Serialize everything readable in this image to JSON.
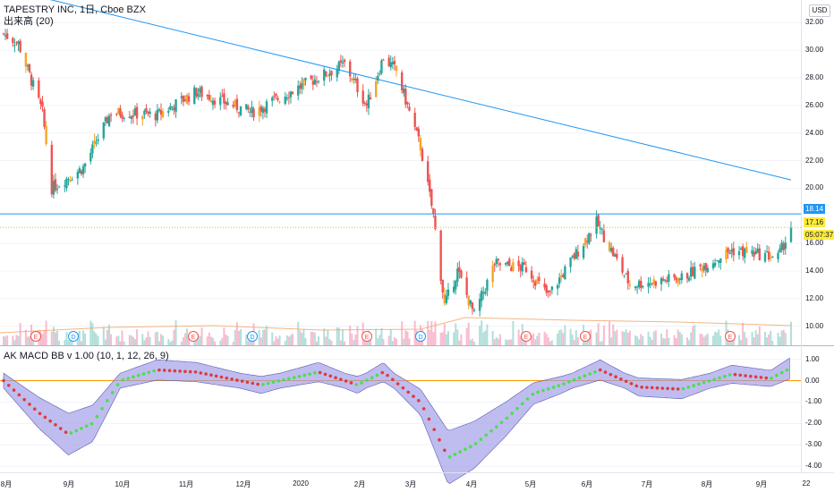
{
  "header": {
    "symbol_title": "TAPESTRY INC, 1日, Cboe BZX",
    "volume_legend": "出来高 (20)",
    "indicator_legend": "AK MACD BB v 1.00 (10, 1, 12, 26, 9)",
    "currency": "USD"
  },
  "price_axis": {
    "labels": [
      "32.00",
      "30.00",
      "28.00",
      "26.00",
      "24.00",
      "22.00",
      "20.00",
      "16.00",
      "14.00",
      "12.00",
      "10.00"
    ],
    "horizontal_line_tag": "18.14",
    "last_price_tag": "17.16",
    "countdown_tag": "05:07:37"
  },
  "indicator_axis": {
    "labels": [
      "1.00",
      "0.00",
      "-1.00",
      "-2.00",
      "-3.00",
      "-4.00"
    ]
  },
  "time_axis": {
    "labels": [
      "8月",
      "9月",
      "10月",
      "11月",
      "12月",
      "2020",
      "2月",
      "3月",
      "4月",
      "5月",
      "6月",
      "7月",
      "8月",
      "9月",
      "22"
    ]
  },
  "event_markers": [
    "E",
    "D",
    "E",
    "D",
    "E",
    "D",
    "E",
    "E",
    "E"
  ],
  "colors": {
    "up_candle": "#26a69a",
    "down_candle": "#ef5350",
    "highlight_candle": "#f4a62a",
    "trend_line": "#2196f3",
    "zero_line": "#ff9800",
    "macd_up_dots": "#4be04b",
    "macd_down_dots": "#e03a3a",
    "bb_fill": "#9c99e6",
    "tag_blue": "#2196f3",
    "tag_yellow": "#ffeb3b"
  },
  "chart_data": [
    {
      "type": "candlestick",
      "x_start": "2019-07-24",
      "x_end": "2020-09-21",
      "ylim": [
        9.0,
        33.0
      ],
      "checkpoints": [
        {
          "x": "2019-07-24",
          "close": 31.2
        },
        {
          "x": "2019-08-01",
          "close": 30.5
        },
        {
          "x": "2019-08-14",
          "close": 25.5
        },
        {
          "x": "2019-08-19",
          "close": 20.0
        },
        {
          "x": "2019-09-05",
          "close": 21.5
        },
        {
          "x": "2019-09-20",
          "close": 25.5
        },
        {
          "x": "2019-10-15",
          "close": 25.3
        },
        {
          "x": "2019-11-05",
          "close": 27.0
        },
        {
          "x": "2019-12-05",
          "close": 25.5
        },
        {
          "x": "2020-01-02",
          "close": 27.5
        },
        {
          "x": "2020-01-24",
          "close": 29.0
        },
        {
          "x": "2020-02-05",
          "close": 26.0
        },
        {
          "x": "2020-02-14",
          "close": 29.5
        },
        {
          "x": "2020-02-21",
          "close": 28.5
        },
        {
          "x": "2020-03-05",
          "close": 23.0
        },
        {
          "x": "2020-03-12",
          "close": 18.0
        },
        {
          "x": "2020-03-18",
          "close": 11.5
        },
        {
          "x": "2020-03-25",
          "close": 14.0
        },
        {
          "x": "2020-04-03",
          "close": 10.8
        },
        {
          "x": "2020-04-14",
          "close": 14.5
        },
        {
          "x": "2020-05-01",
          "close": 14.2
        },
        {
          "x": "2020-05-13",
          "close": 12.2
        },
        {
          "x": "2020-06-08",
          "close": 17.5
        },
        {
          "x": "2020-06-26",
          "close": 13.0
        },
        {
          "x": "2020-07-24",
          "close": 13.5
        },
        {
          "x": "2020-08-20",
          "close": 15.5
        },
        {
          "x": "2020-09-14",
          "close": 15.0
        },
        {
          "x": "2020-09-21",
          "close": 17.16
        }
      ],
      "horizontal_line": 18.14,
      "trend_line": [
        {
          "x": "2019-07-24",
          "y": 34.5
        },
        {
          "x": "2020-09-21",
          "y": 20.6
        }
      ]
    },
    {
      "type": "bar",
      "series_name": "出来高 (20)",
      "note": "volume histogram with 20-period moving average overlay"
    },
    {
      "type": "area",
      "series_name": "AK MACD BB v 1.00 (10, 1, 12, 26, 9)",
      "ylim": [
        -4.2,
        1.4
      ],
      "macd_checkpoints": [
        {
          "x": "2019-07-24",
          "y": 0.0
        },
        {
          "x": "2019-08-12",
          "y": -1.5
        },
        {
          "x": "2019-08-28",
          "y": -2.5
        },
        {
          "x": "2019-09-10",
          "y": -2.0
        },
        {
          "x": "2019-09-25",
          "y": 0.0
        },
        {
          "x": "2019-10-15",
          "y": 0.5
        },
        {
          "x": "2019-11-05",
          "y": 0.4
        },
        {
          "x": "2019-12-10",
          "y": -0.2
        },
        {
          "x": "2020-01-10",
          "y": 0.4
        },
        {
          "x": "2020-01-31",
          "y": -0.2
        },
        {
          "x": "2020-02-14",
          "y": 0.4
        },
        {
          "x": "2020-03-05",
          "y": -1.0
        },
        {
          "x": "2020-03-20",
          "y": -3.6
        },
        {
          "x": "2020-04-03",
          "y": -3.0
        },
        {
          "x": "2020-04-20",
          "y": -1.8
        },
        {
          "x": "2020-05-05",
          "y": -0.6
        },
        {
          "x": "2020-05-20",
          "y": -0.2
        },
        {
          "x": "2020-06-10",
          "y": 0.5
        },
        {
          "x": "2020-07-01",
          "y": -0.3
        },
        {
          "x": "2020-07-24",
          "y": -0.4
        },
        {
          "x": "2020-08-20",
          "y": 0.3
        },
        {
          "x": "2020-09-10",
          "y": 0.1
        },
        {
          "x": "2020-09-21",
          "y": 0.6
        }
      ]
    }
  ]
}
